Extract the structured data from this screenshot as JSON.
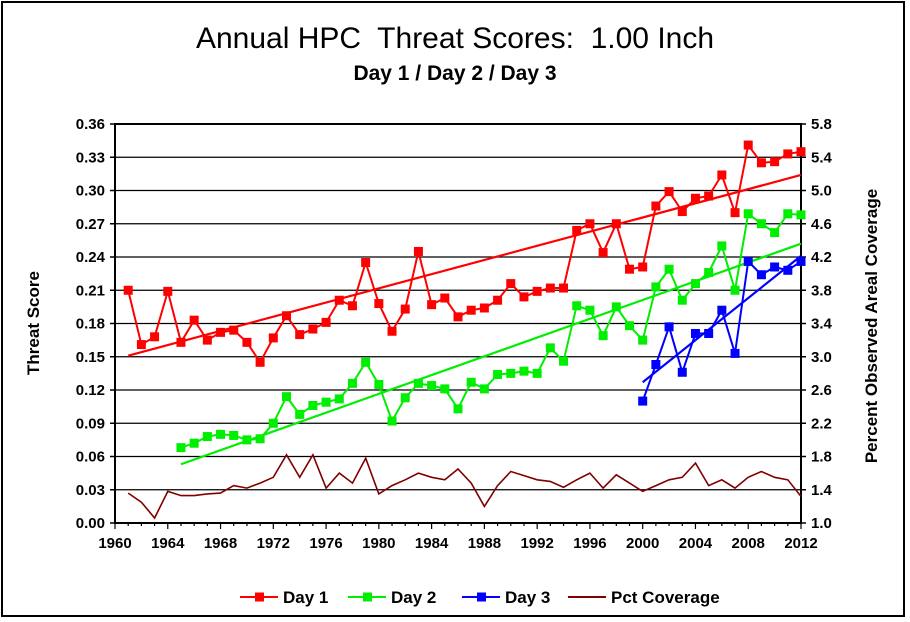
{
  "chart_data": {
    "type": "line",
    "title": "Annual HPC  Threat Scores:  1.00 Inch",
    "subtitle": "Day 1 / Day 2 / Day 3",
    "ylabel": "Threat Score",
    "y2label": "Percent Observed Areal Coverage",
    "xlim": [
      1960,
      2012
    ],
    "ylim": [
      0,
      0.36
    ],
    "y2lim": [
      1.0,
      5.8
    ],
    "x_ticks": [
      "1960",
      "1964",
      "1968",
      "1972",
      "1976",
      "1980",
      "1984",
      "1988",
      "1992",
      "1996",
      "2000",
      "2004",
      "2008",
      "2012"
    ],
    "y_ticks": [
      "0.00",
      "0.03",
      "0.06",
      "0.09",
      "0.12",
      "0.15",
      "0.18",
      "0.21",
      "0.24",
      "0.27",
      "0.30",
      "0.33",
      "0.36"
    ],
    "y2_ticks": [
      "1.0",
      "1.4",
      "1.8",
      "2.2",
      "2.6",
      "3.0",
      "3.4",
      "3.8",
      "4.2",
      "4.6",
      "5.0",
      "5.4",
      "5.8"
    ],
    "grid": true,
    "legend_position": "bottom",
    "series": [
      {
        "name": "Day 1",
        "color": "#ff0000",
        "marker": "square",
        "axis": "left",
        "x": [
          1961,
          1962,
          1963,
          1964,
          1965,
          1966,
          1967,
          1968,
          1969,
          1970,
          1971,
          1972,
          1973,
          1974,
          1975,
          1976,
          1977,
          1978,
          1979,
          1980,
          1981,
          1982,
          1983,
          1984,
          1985,
          1986,
          1987,
          1988,
          1989,
          1990,
          1991,
          1992,
          1993,
          1994,
          1995,
          1996,
          1997,
          1998,
          1999,
          2000,
          2001,
          2002,
          2003,
          2004,
          2005,
          2006,
          2007,
          2008,
          2009,
          2010,
          2011,
          2012
        ],
        "values": [
          0.21,
          0.161,
          0.168,
          0.209,
          0.163,
          0.183,
          0.165,
          0.172,
          0.174,
          0.163,
          0.145,
          0.167,
          0.187,
          0.17,
          0.175,
          0.181,
          0.201,
          0.196,
          0.235,
          0.198,
          0.173,
          0.193,
          0.245,
          0.197,
          0.203,
          0.186,
          0.192,
          0.194,
          0.201,
          0.216,
          0.204,
          0.209,
          0.212,
          0.212,
          0.264,
          0.27,
          0.244,
          0.27,
          0.229,
          0.231,
          0.286,
          0.299,
          0.281,
          0.293,
          0.295,
          0.314,
          0.28,
          0.341,
          0.325,
          0.326,
          0.333,
          0.335
        ],
        "trend": {
          "x": [
            1961,
            2012
          ],
          "values": [
            0.151,
            0.314
          ]
        }
      },
      {
        "name": "Day 2",
        "color": "#00ee00",
        "marker": "square",
        "axis": "left",
        "x": [
          1965,
          1966,
          1967,
          1968,
          1969,
          1970,
          1971,
          1972,
          1973,
          1974,
          1975,
          1976,
          1977,
          1978,
          1979,
          1980,
          1981,
          1982,
          1983,
          1984,
          1985,
          1986,
          1987,
          1988,
          1989,
          1990,
          1991,
          1992,
          1993,
          1994,
          1995,
          1996,
          1997,
          1998,
          1999,
          2000,
          2001,
          2002,
          2003,
          2004,
          2005,
          2006,
          2007,
          2008,
          2009,
          2010,
          2011,
          2012
        ],
        "values": [
          0.068,
          0.072,
          0.078,
          0.08,
          0.079,
          0.075,
          0.076,
          0.09,
          0.114,
          0.098,
          0.106,
          0.109,
          0.112,
          0.126,
          0.145,
          0.125,
          0.092,
          0.113,
          0.126,
          0.124,
          0.121,
          0.103,
          0.127,
          0.121,
          0.134,
          0.135,
          0.137,
          0.135,
          0.158,
          0.146,
          0.196,
          0.192,
          0.169,
          0.195,
          0.178,
          0.165,
          0.213,
          0.229,
          0.201,
          0.216,
          0.226,
          0.25,
          0.21,
          0.279,
          0.27,
          0.262,
          0.279,
          0.278
        ],
        "trend": {
          "x": [
            1965,
            2012
          ],
          "values": [
            0.053,
            0.252
          ]
        }
      },
      {
        "name": "Day 3",
        "color": "#0000ff",
        "marker": "square",
        "axis": "left",
        "x": [
          2000,
          2001,
          2002,
          2003,
          2004,
          2005,
          2006,
          2007,
          2008,
          2009,
          2010,
          2011,
          2012
        ],
        "values": [
          0.11,
          0.143,
          0.177,
          0.136,
          0.171,
          0.171,
          0.192,
          0.153,
          0.236,
          0.224,
          0.231,
          0.228,
          0.236
        ],
        "trend": {
          "x": [
            2000,
            2012
          ],
          "values": [
            0.127,
            0.241
          ]
        }
      },
      {
        "name": "Pct Coverage",
        "color": "#800000",
        "marker": "none",
        "axis": "right",
        "x": [
          1961,
          1962,
          1963,
          1964,
          1965,
          1966,
          1967,
          1968,
          1969,
          1970,
          1971,
          1972,
          1973,
          1974,
          1975,
          1976,
          1977,
          1978,
          1979,
          1980,
          1981,
          1982,
          1983,
          1984,
          1985,
          1986,
          1987,
          1988,
          1989,
          1990,
          1991,
          1992,
          1993,
          1994,
          1995,
          1996,
          1997,
          1998,
          1999,
          2000,
          2001,
          2002,
          2003,
          2004,
          2005,
          2006,
          2007,
          2008,
          2009,
          2010,
          2011,
          2012
        ],
        "values": [
          1.36,
          1.25,
          1.06,
          1.38,
          1.33,
          1.33,
          1.35,
          1.36,
          1.45,
          1.42,
          1.48,
          1.55,
          1.82,
          1.55,
          1.82,
          1.42,
          1.6,
          1.48,
          1.78,
          1.35,
          1.45,
          1.52,
          1.6,
          1.55,
          1.52,
          1.65,
          1.48,
          1.2,
          1.45,
          1.62,
          1.57,
          1.52,
          1.5,
          1.43,
          1.52,
          1.6,
          1.42,
          1.58,
          1.48,
          1.38,
          1.45,
          1.52,
          1.55,
          1.72,
          1.45,
          1.52,
          1.42,
          1.55,
          1.62,
          1.55,
          1.52,
          1.32
        ]
      }
    ]
  }
}
